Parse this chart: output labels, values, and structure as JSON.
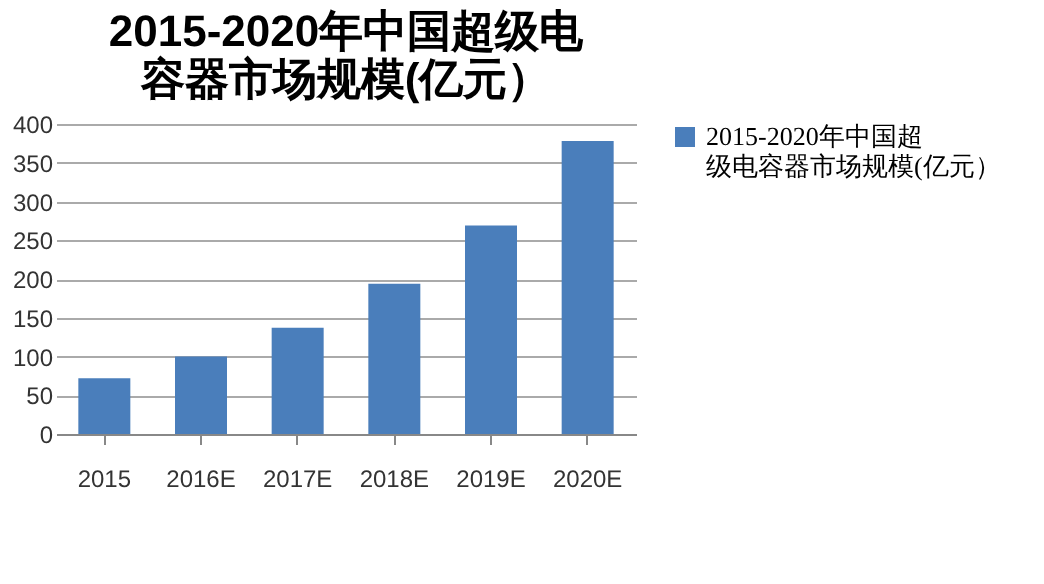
{
  "chart_data": {
    "type": "bar",
    "title": "2015-2020年中国超级电容器市场规模(亿元）",
    "categories": [
      "2015",
      "2016E",
      "2017E",
      "2018E",
      "2019E",
      "2020E"
    ],
    "series": [
      {
        "name": "2015-2020年中国超级电容器市场规模(亿元）",
        "color": "#4a7ebb",
        "values": [
          72,
          100,
          137,
          194,
          269,
          378
        ]
      }
    ],
    "ylim": [
      0,
      400
    ],
    "yticks": [
      0,
      50,
      100,
      150,
      200,
      250,
      300,
      350,
      400
    ],
    "grid": "y",
    "legend": "right"
  }
}
